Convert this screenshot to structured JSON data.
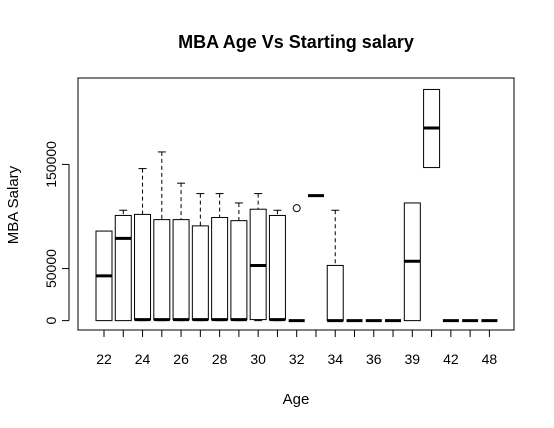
{
  "chart_data": {
    "type": "box",
    "title": "MBA Age Vs Starting salary",
    "xlabel": "Age",
    "ylabel": "MBA Salary",
    "y_ticks": [
      0,
      50000,
      150000
    ],
    "y_tick_labels": [
      "0",
      "50000",
      "150000"
    ],
    "x_tick_labels": [
      "22",
      "24",
      "26",
      "28",
      "30",
      "32",
      "34",
      "36",
      "39",
      "42",
      "48"
    ],
    "ylim": [
      -9000,
      233000
    ],
    "grid": false,
    "groups": [
      {
        "age": "22",
        "min": 0,
        "q1": 0,
        "median": 43000,
        "q3": 86000,
        "max": 86000
      },
      {
        "age": "23",
        "min": 0,
        "q1": 0,
        "median": 79000,
        "q3": 101000,
        "max": 106000
      },
      {
        "age": "24",
        "min": 0,
        "q1": 1000,
        "median": 1000,
        "q3": 102000,
        "max": 146000
      },
      {
        "age": "25",
        "min": 0,
        "q1": 1000,
        "median": 1000,
        "q3": 97000,
        "max": 162000
      },
      {
        "age": "26",
        "min": 0,
        "q1": 1000,
        "median": 1000,
        "q3": 97000,
        "max": 132000
      },
      {
        "age": "27",
        "min": 0,
        "q1": 1000,
        "median": 1000,
        "q3": 91000,
        "max": 122000
      },
      {
        "age": "28",
        "min": 0,
        "q1": 1000,
        "median": 1000,
        "q3": 99000,
        "max": 122000
      },
      {
        "age": "29",
        "min": 0,
        "q1": 1000,
        "median": 1000,
        "q3": 96000,
        "max": 113000
      },
      {
        "age": "30",
        "min": 0,
        "q1": 1000,
        "median": 53000,
        "q3": 107000,
        "max": 122000
      },
      {
        "age": "31",
        "min": 0,
        "q1": 1000,
        "median": 1000,
        "q3": 101000,
        "max": 106000
      },
      {
        "age": "32",
        "min": 0,
        "q1": 0,
        "median": 0,
        "q3": 0,
        "max": 0,
        "outliers": [
          108000
        ]
      },
      {
        "age": "33",
        "min": 120000,
        "q1": 120000,
        "median": 120000,
        "q3": 120000,
        "max": 120000
      },
      {
        "age": "34",
        "min": 0,
        "q1": 0,
        "median": 0,
        "q3": 53000,
        "max": 106000
      },
      {
        "age": "35",
        "min": 0,
        "q1": 0,
        "median": 0,
        "q3": 0,
        "max": 0
      },
      {
        "age": "36",
        "min": 0,
        "q1": 0,
        "median": 0,
        "q3": 0,
        "max": 0
      },
      {
        "age": "37",
        "min": 0,
        "q1": 0,
        "median": 0,
        "q3": 0,
        "max": 0
      },
      {
        "age": "39",
        "min": 0,
        "q1": 0,
        "median": 57000,
        "q3": 113000,
        "max": 113000
      },
      {
        "age": "40",
        "min": 147000,
        "q1": 147000,
        "median": 185000,
        "q3": 222000,
        "max": 222000
      },
      {
        "age": "42",
        "min": 0,
        "q1": 0,
        "median": 0,
        "q3": 0,
        "max": 0
      },
      {
        "age": "43",
        "min": 0,
        "q1": 0,
        "median": 0,
        "q3": 0,
        "max": 0
      },
      {
        "age": "48",
        "min": 0,
        "q1": 0,
        "median": 0,
        "q3": 0,
        "max": 0
      }
    ]
  }
}
